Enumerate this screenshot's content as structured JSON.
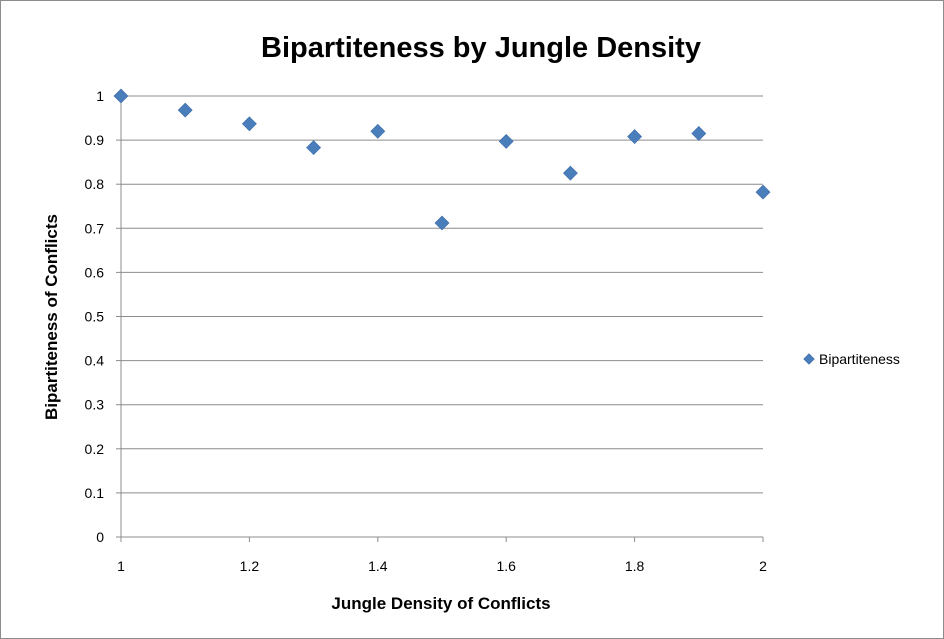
{
  "chart_data": {
    "type": "scatter",
    "title": "Bipartiteness by Jungle Density",
    "xlabel": "Jungle Density of Conflicts",
    "ylabel": "Bipartiteness of Conflicts",
    "xlim": [
      1,
      2
    ],
    "ylim": [
      0,
      1
    ],
    "xticks": [
      1,
      1.2,
      1.4,
      1.6,
      1.8,
      2
    ],
    "xtick_labels": [
      "1",
      "1.2",
      "1.4",
      "1.6",
      "1.8",
      "2"
    ],
    "yticks": [
      0,
      0.1,
      0.2,
      0.3,
      0.4,
      0.5,
      0.6,
      0.7,
      0.8,
      0.9,
      1
    ],
    "ytick_labels": [
      "0",
      "0.1",
      "0.2",
      "0.3",
      "0.4",
      "0.5",
      "0.6",
      "0.7",
      "0.8",
      "0.9",
      "1"
    ],
    "grid": "horizontal",
    "legend_position": "right",
    "series": [
      {
        "name": "Bipartiteness",
        "color": "#4a7ebb",
        "marker": "diamond",
        "x": [
          1.0,
          1.1,
          1.2,
          1.3,
          1.4,
          1.5,
          1.6,
          1.7,
          1.8,
          1.9,
          2.0
        ],
        "y": [
          1.0,
          0.968,
          0.937,
          0.883,
          0.92,
          0.712,
          0.897,
          0.825,
          0.908,
          0.915,
          0.782
        ]
      }
    ]
  }
}
